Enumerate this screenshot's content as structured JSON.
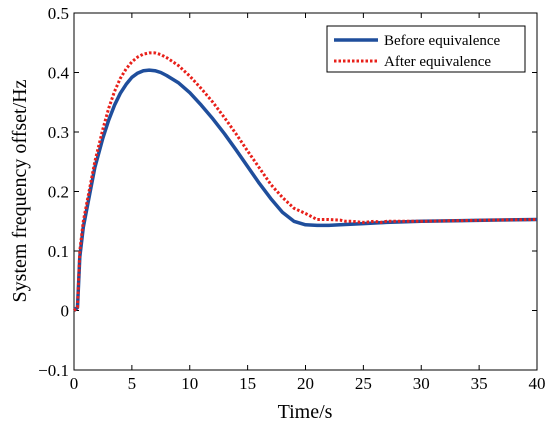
{
  "chart_data": {
    "type": "line",
    "title": "",
    "xlabel": "Time/s",
    "ylabel": "System frequency offset/Hz",
    "xlim": [
      0,
      40
    ],
    "ylim": [
      -0.1,
      0.5
    ],
    "xticks": [
      "0",
      "5",
      "10",
      "15",
      "20",
      "25",
      "30",
      "35",
      "40"
    ],
    "yticks": [
      "−0.1",
      "0",
      "0.1",
      "0.2",
      "0.3",
      "0.4",
      "0.5"
    ],
    "grid": false,
    "legend_position": "top-right",
    "series": [
      {
        "name": "Before equivalence",
        "color": "#1f4e9c",
        "style": "solid",
        "x": [
          0,
          0.3,
          0.5,
          0.8,
          1.2,
          1.8,
          2.5,
          3.0,
          3.5,
          4.0,
          4.5,
          5.0,
          5.5,
          6.0,
          6.5,
          7.0,
          7.5,
          8.0,
          9.0,
          10.0,
          11.0,
          12.0,
          13.0,
          14.0,
          15.0,
          16.0,
          17.0,
          18.0,
          19.0,
          20.0,
          21.0,
          22.0,
          23.0,
          25.0,
          27.0,
          30.0,
          33.0,
          36.0,
          40.0
        ],
        "y": [
          0.0,
          0.005,
          0.09,
          0.14,
          0.18,
          0.24,
          0.29,
          0.32,
          0.345,
          0.365,
          0.38,
          0.392,
          0.399,
          0.403,
          0.404,
          0.403,
          0.4,
          0.395,
          0.383,
          0.366,
          0.345,
          0.322,
          0.297,
          0.27,
          0.242,
          0.214,
          0.188,
          0.165,
          0.15,
          0.144,
          0.143,
          0.143,
          0.144,
          0.146,
          0.148,
          0.15,
          0.151,
          0.152,
          0.153
        ]
      },
      {
        "name": "After equivalence",
        "color": "#e8201a",
        "style": "dotted",
        "x": [
          0,
          0.3,
          0.5,
          0.8,
          1.2,
          1.8,
          2.5,
          3.0,
          3.5,
          4.0,
          4.5,
          5.0,
          5.5,
          6.0,
          6.5,
          7.0,
          7.5,
          8.0,
          9.0,
          10.0,
          11.0,
          12.0,
          13.0,
          14.0,
          15.0,
          16.0,
          17.0,
          18.0,
          19.0,
          20.0,
          20.5,
          21.0,
          22.0,
          23.0,
          23.5,
          24.0,
          25.0,
          26.0,
          26.5,
          27.0,
          30.0,
          33.0,
          36.0,
          40.0
        ],
        "y": [
          0.0,
          0.005,
          0.1,
          0.15,
          0.19,
          0.25,
          0.305,
          0.34,
          0.368,
          0.39,
          0.406,
          0.418,
          0.426,
          0.431,
          0.433,
          0.433,
          0.43,
          0.425,
          0.412,
          0.394,
          0.373,
          0.35,
          0.324,
          0.297,
          0.268,
          0.24,
          0.212,
          0.19,
          0.172,
          0.163,
          0.158,
          0.153,
          0.153,
          0.152,
          0.15,
          0.15,
          0.148,
          0.15,
          0.148,
          0.15,
          0.15,
          0.151,
          0.152,
          0.153
        ]
      }
    ]
  }
}
